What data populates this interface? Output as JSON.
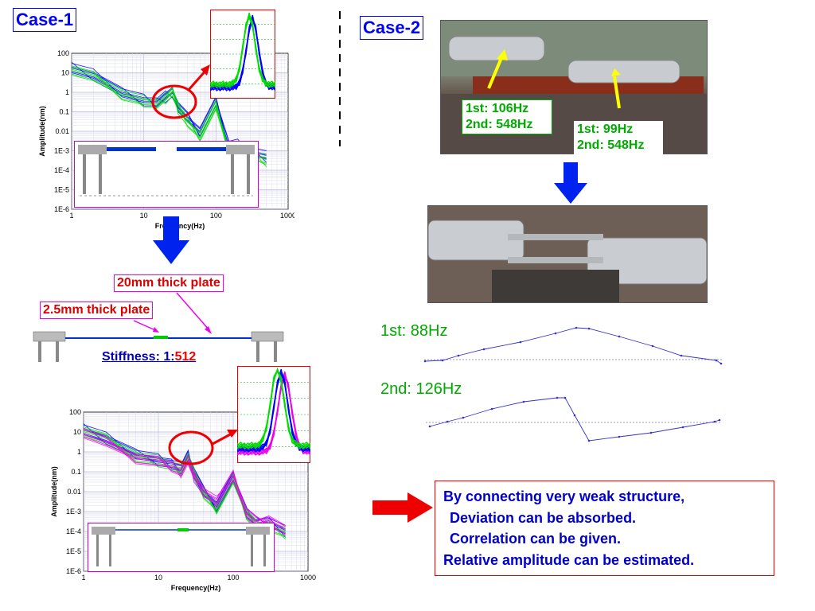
{
  "case1": {
    "label": "Case-1"
  },
  "case2": {
    "label": "Case-2"
  },
  "chart_data": [
    {
      "type": "line",
      "id": "case1-before",
      "xlabel": "Frequency(Hz)",
      "ylabel": "Amplitude(nm)",
      "x_scale": "log",
      "y_scale": "log",
      "xlim": [
        1,
        1000
      ],
      "ylim": [
        1e-06,
        100
      ],
      "x_ticks": [
        "1",
        "10",
        "100",
        "1000"
      ],
      "y_ticks": [
        "100",
        "10",
        "1",
        "0.1",
        "0.01",
        "1E-3",
        "1E-4",
        "1E-5",
        "1E-6"
      ],
      "series": [
        {
          "color": "#0000ff",
          "x": [
            1,
            2,
            5,
            10,
            15,
            20,
            25,
            30,
            40,
            60,
            100,
            150,
            200,
            300,
            500
          ],
          "y": [
            20,
            8,
            1,
            0.4,
            0.3,
            0.6,
            0.9,
            0.2,
            0.05,
            0.01,
            0.3,
            0.002,
            0.002,
            0.001,
            0.0005
          ]
        },
        {
          "color": "#00dd00",
          "x": [
            1,
            2,
            5,
            10,
            15,
            20,
            25,
            30,
            40,
            60,
            100,
            150,
            200,
            300,
            500
          ],
          "y": [
            15,
            6,
            0.8,
            0.35,
            0.25,
            0.5,
            1.0,
            0.15,
            0.03,
            0.006,
            0.2,
            0.001,
            0.0015,
            0.0008,
            0.0003
          ]
        }
      ]
    },
    {
      "type": "line",
      "id": "case1-after",
      "xlabel": "Frequency(Hz)",
      "ylabel": "Amplitude(nm)",
      "x_scale": "log",
      "y_scale": "log",
      "xlim": [
        1,
        1000
      ],
      "ylim": [
        1e-06,
        100
      ],
      "x_ticks": [
        "1",
        "10",
        "100",
        "1000"
      ],
      "y_ticks": [
        "100",
        "10",
        "1",
        "0.1",
        "0.01",
        "1E-3",
        "1E-4",
        "1E-5",
        "1E-6"
      ],
      "series": [
        {
          "color": "#0000ff",
          "x": [
            1,
            2,
            5,
            10,
            15,
            20,
            25,
            30,
            40,
            60,
            100,
            150,
            200,
            300,
            500
          ],
          "y": [
            15,
            5,
            0.8,
            0.4,
            0.25,
            0.15,
            0.6,
            0.1,
            0.01,
            0.002,
            0.05,
            0.001,
            0.0003,
            0.0003,
            0.0001
          ]
        },
        {
          "color": "#00dd00",
          "x": [
            1,
            2,
            5,
            10,
            15,
            20,
            25,
            30,
            40,
            60,
            100,
            150,
            200,
            300,
            500
          ],
          "y": [
            12,
            4,
            0.6,
            0.35,
            0.2,
            0.12,
            0.5,
            0.08,
            0.008,
            0.0015,
            0.04,
            0.0008,
            0.0002,
            0.0002,
            8e-05
          ]
        },
        {
          "color": "#ee00ee",
          "x": [
            1,
            2,
            5,
            10,
            15,
            20,
            25,
            30,
            40,
            60,
            100,
            150,
            200,
            300,
            500
          ],
          "y": [
            10,
            3,
            0.5,
            0.3,
            0.2,
            0.1,
            0.4,
            0.06,
            0.01,
            0.003,
            0.06,
            0.001,
            0.0003,
            0.0004,
            0.0001
          ]
        }
      ]
    }
  ],
  "case1_labels": {
    "plate_20mm": "20mm thick plate",
    "plate_2_5mm": "2.5mm thick plate",
    "stiffness_prefix": "Stiffness: 1:",
    "stiffness_value": "512"
  },
  "case2_photo1": {
    "left_1st": "1st: 106Hz",
    "left_2nd": "2nd: 548Hz",
    "right_1st": "1st: 99Hz",
    "right_2nd": "2nd: 548Hz"
  },
  "modes": {
    "first": "1st: 88Hz",
    "second": "2nd: 126Hz"
  },
  "conclusion": {
    "line1": "By connecting very weak structure,",
    "line2": "Deviation can be absorbed.",
    "line3": "Correlation can be given.",
    "line4": "Relative amplitude can be estimated."
  },
  "colors": {
    "blue": "#0000ff",
    "green": "#00dd00",
    "magenta": "#ee00ee",
    "red": "#e00000"
  }
}
